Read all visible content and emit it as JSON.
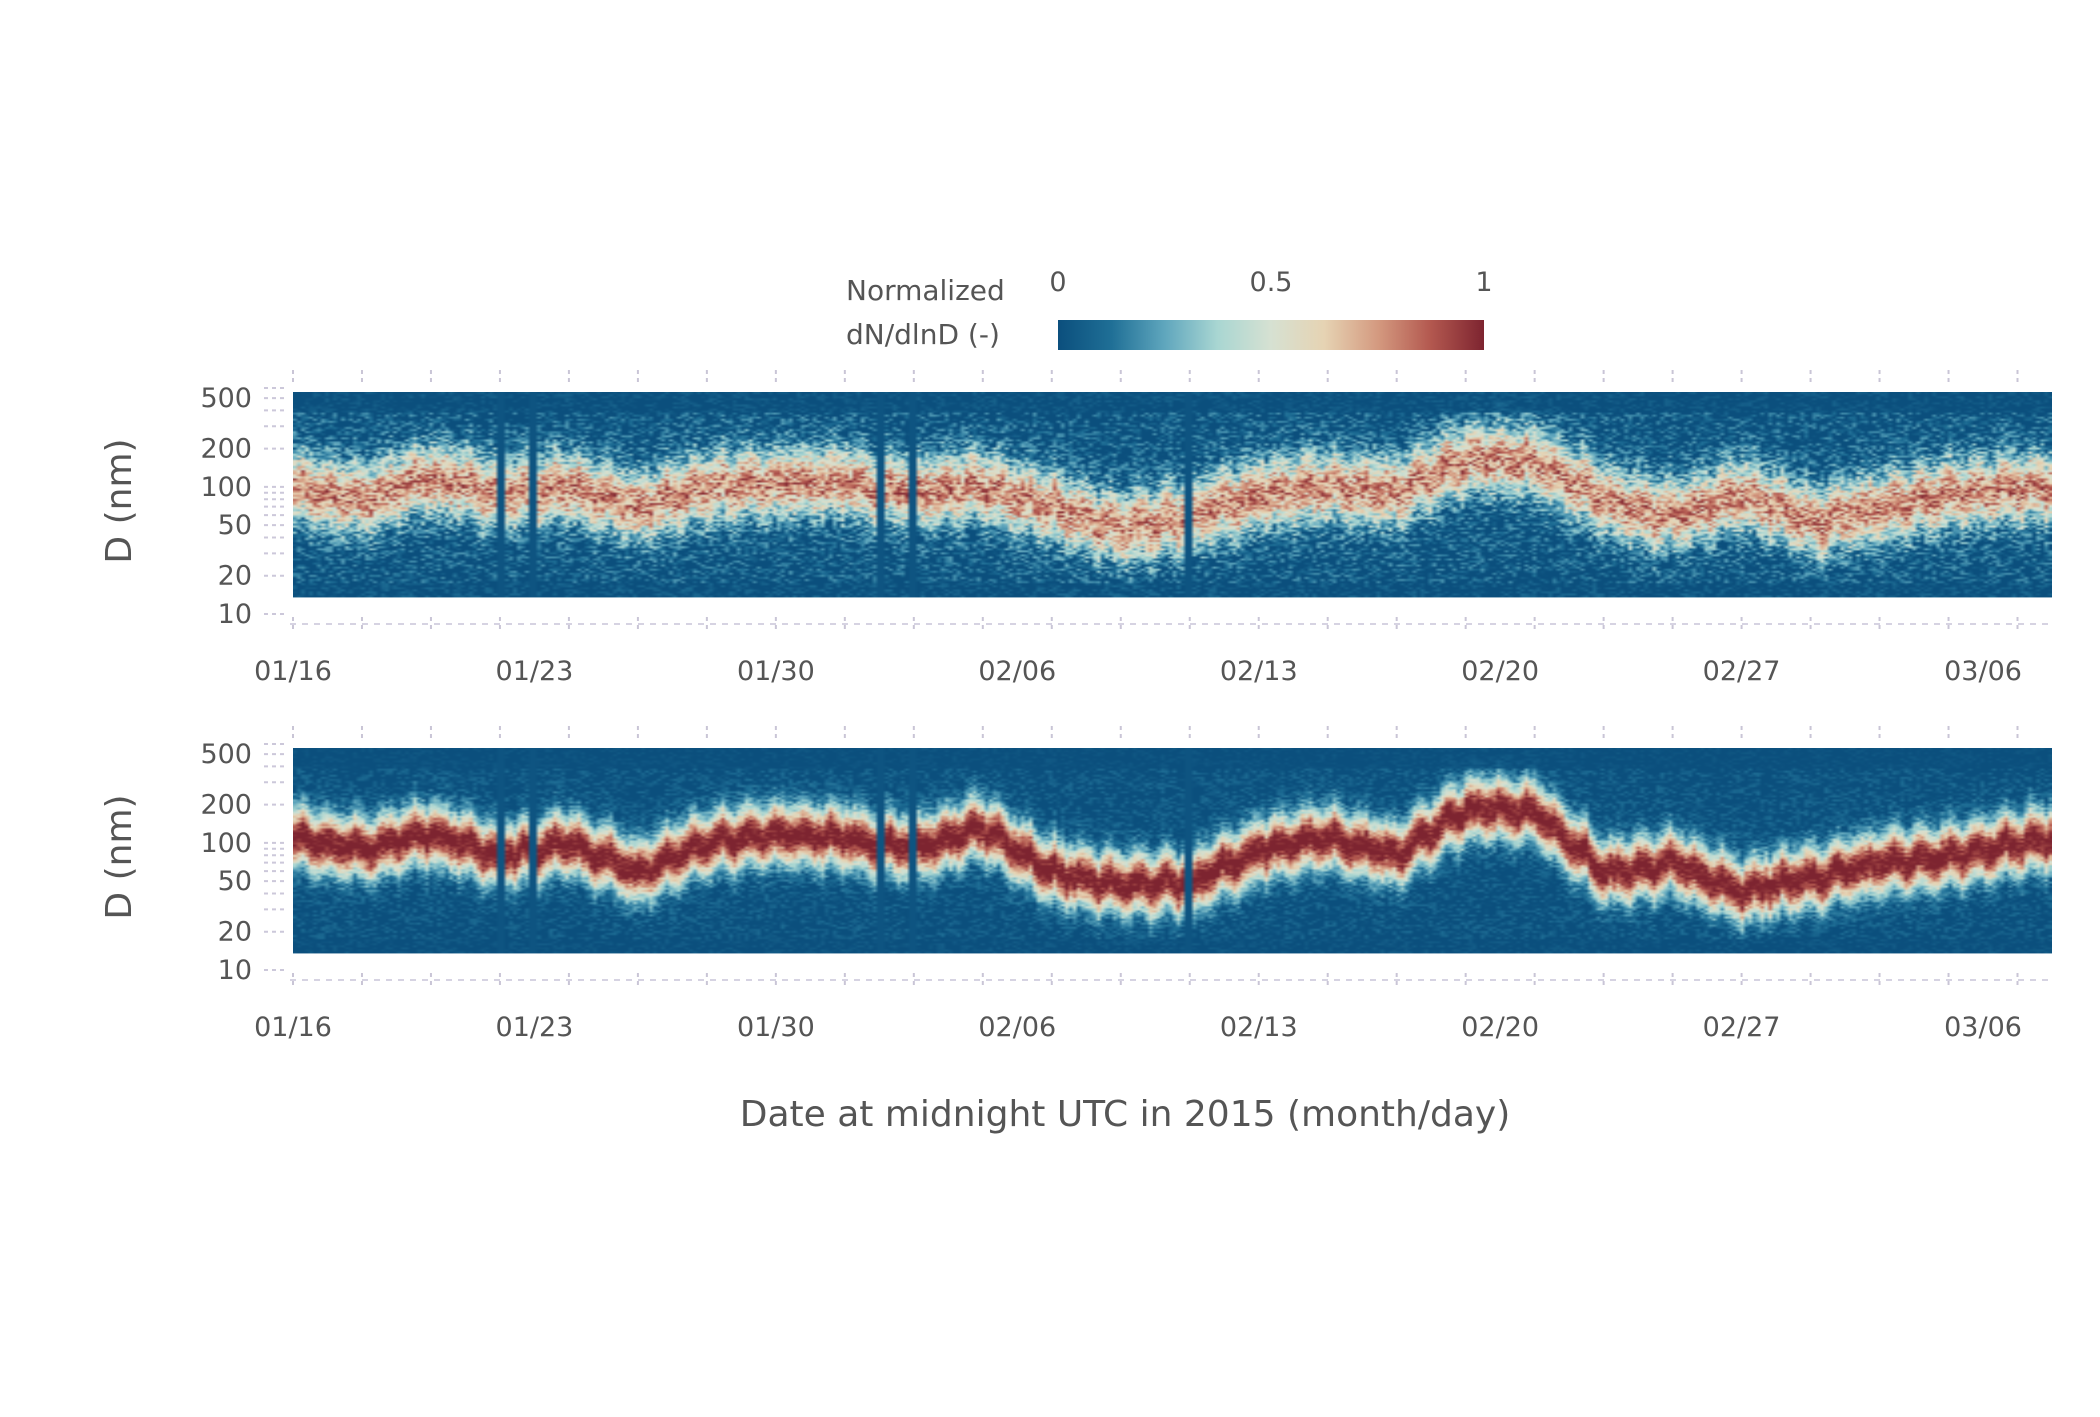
{
  "figure": {
    "xlabel": "Date at midnight UTC in 2015 (month/day)",
    "colorbar": {
      "title_lines": [
        "Normalized",
        "dN/dlnD (-)"
      ],
      "ticks": [
        "0",
        "0.5",
        "1"
      ],
      "tick_values": [
        0,
        0.5,
        1
      ],
      "colors": [
        "#0b4f7d",
        "#1f6f96",
        "#5fa6bd",
        "#a9d6d2",
        "#d6e1d2",
        "#e6d3b3",
        "#d49a80",
        "#b3584f",
        "#7d2430"
      ]
    }
  },
  "chart_data": [
    {
      "type": "heatmap",
      "panel": "top",
      "ylabel": "D (nm)",
      "yscale": "log",
      "ylim": [
        10,
        600
      ],
      "yticks": [
        10,
        20,
        50,
        100,
        200,
        500
      ],
      "ytick_labels": [
        "10",
        "20",
        "50",
        "100",
        "200",
        "500"
      ],
      "xlim": [
        "2015-01-16",
        "2015-03-08"
      ],
      "xtick_labels": [
        "01/16",
        "01/23",
        "01/30",
        "02/06",
        "02/13",
        "02/20",
        "02/27",
        "03/06"
      ],
      "xtick_dates": [
        "2015-01-16",
        "2015-01-23",
        "2015-01-30",
        "2015-02-06",
        "2015-02-13",
        "2015-02-20",
        "2015-02-27",
        "2015-03-06"
      ],
      "z_range": [
        0,
        1
      ],
      "mode_diameter_nm": [
        [
          "2015-01-16",
          90
        ],
        [
          "2015-01-18",
          70
        ],
        [
          "2015-01-20",
          110
        ],
        [
          "2015-01-22",
          80
        ],
        [
          "2015-01-24",
          90
        ],
        [
          "2015-01-26",
          60
        ],
        [
          "2015-01-28",
          90
        ],
        [
          "2015-01-30",
          100
        ],
        [
          "2015-02-01",
          100
        ],
        [
          "2015-02-03",
          80
        ],
        [
          "2015-02-05",
          90
        ],
        [
          "2015-02-07",
          60
        ],
        [
          "2015-02-09",
          40
        ],
        [
          "2015-02-11",
          50
        ],
        [
          "2015-02-13",
          80
        ],
        [
          "2015-02-15",
          90
        ],
        [
          "2015-02-17",
          80
        ],
        [
          "2015-02-19",
          160
        ],
        [
          "2015-02-21",
          150
        ],
        [
          "2015-02-23",
          70
        ],
        [
          "2015-02-25",
          50
        ],
        [
          "2015-02-27",
          80
        ],
        [
          "2015-03-01",
          45
        ],
        [
          "2015-03-03",
          60
        ],
        [
          "2015-03-05",
          80
        ],
        [
          "2015-03-08",
          90
        ]
      ],
      "data_gaps": [
        "2015-01-22",
        "2015-01-23",
        "2015-02-02",
        "2015-02-03",
        "2015-02-11"
      ]
    },
    {
      "type": "heatmap",
      "panel": "bottom",
      "ylabel": "D (nm)",
      "xlabel": "Date at midnight UTC in 2015 (month/day)",
      "yscale": "log",
      "ylim": [
        10,
        600
      ],
      "yticks": [
        10,
        20,
        50,
        100,
        200,
        500
      ],
      "ytick_labels": [
        "10",
        "20",
        "50",
        "100",
        "200",
        "500"
      ],
      "xlim": [
        "2015-01-16",
        "2015-03-08"
      ],
      "xtick_labels": [
        "01/16",
        "01/23",
        "01/30",
        "02/06",
        "02/13",
        "02/20",
        "02/27",
        "03/06"
      ],
      "xtick_dates": [
        "2015-01-16",
        "2015-01-23",
        "2015-01-30",
        "2015-02-06",
        "2015-02-13",
        "2015-02-20",
        "2015-02-27",
        "2015-03-06"
      ],
      "z_range": [
        0,
        1
      ],
      "mode_diameter_nm": [
        [
          "2015-01-16",
          100
        ],
        [
          "2015-01-18",
          80
        ],
        [
          "2015-01-20",
          110
        ],
        [
          "2015-01-22",
          70
        ],
        [
          "2015-01-24",
          90
        ],
        [
          "2015-01-26",
          50
        ],
        [
          "2015-01-28",
          90
        ],
        [
          "2015-01-30",
          110
        ],
        [
          "2015-02-01",
          100
        ],
        [
          "2015-02-03",
          80
        ],
        [
          "2015-02-05",
          120
        ],
        [
          "2015-02-07",
          50
        ],
        [
          "2015-02-09",
          40
        ],
        [
          "2015-02-11",
          40
        ],
        [
          "2015-02-13",
          80
        ],
        [
          "2015-02-15",
          100
        ],
        [
          "2015-02-17",
          70
        ],
        [
          "2015-02-19",
          180
        ],
        [
          "2015-02-21",
          170
        ],
        [
          "2015-02-23",
          50
        ],
        [
          "2015-02-25",
          60
        ],
        [
          "2015-02-27",
          35
        ],
        [
          "2015-03-01",
          45
        ],
        [
          "2015-03-03",
          60
        ],
        [
          "2015-03-05",
          70
        ],
        [
          "2015-03-08",
          100
        ]
      ],
      "data_gaps": [
        "2015-01-22",
        "2015-01-23",
        "2015-02-02",
        "2015-02-03",
        "2015-02-11"
      ]
    }
  ]
}
